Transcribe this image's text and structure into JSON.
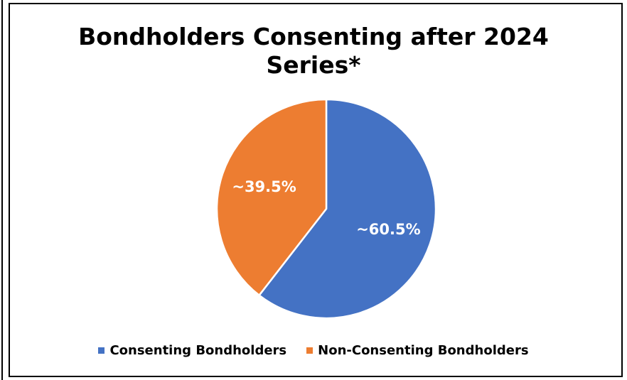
{
  "chart_data": {
    "type": "pie",
    "title": "Bondholders Consenting after 2024 Series*",
    "title_lines": [
      "Bondholders Consenting after 2024",
      "Series*"
    ],
    "categories": [
      "Consenting Bondholders",
      "Non-Consenting Bondholders"
    ],
    "values": [
      60.5,
      39.5
    ],
    "data_labels": [
      "~60.5%",
      "~39.5%"
    ],
    "colors": [
      "#4472C4",
      "#ED7D31"
    ],
    "start_angle_deg": 0,
    "direction": "clockwise",
    "legend_position": "bottom",
    "slice_border_color": "#FFFFFF"
  }
}
